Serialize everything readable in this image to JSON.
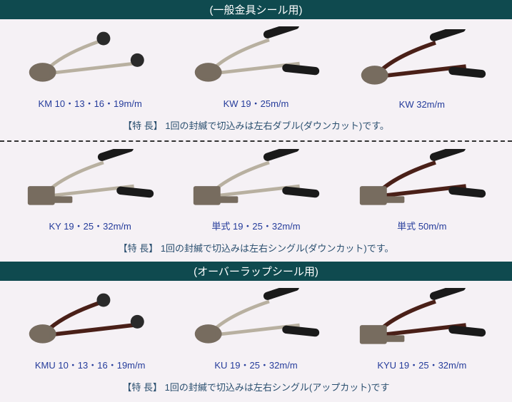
{
  "sections": [
    {
      "header": "(一般金具シール用)",
      "items": [
        {
          "label": "KM 10・13・16・19m/m",
          "style": "km"
        },
        {
          "label": "KW 19・25m/m",
          "style": "kw"
        },
        {
          "label": "KW 32m/m",
          "style": "kw-dark"
        }
      ],
      "feature_label": "【特 長】",
      "feature_text": " 1回の封緘で切込みは左右ダブル(ダウンカット)です。",
      "separator_after": true
    },
    {
      "header": null,
      "items": [
        {
          "label": "KY 19・25・32m/m",
          "style": "ky"
        },
        {
          "label": "単式 19・25・32m/m",
          "style": "tan"
        },
        {
          "label": "単式 50m/m",
          "style": "tan-dark"
        }
      ],
      "feature_label": "【特 長】",
      "feature_text": " 1回の封緘で切込みは左右シングル(ダウンカット)です。",
      "separator_after": false
    },
    {
      "header": "(オーバーラップシール用)",
      "items": [
        {
          "label": "KMU 10・13・16・19m/m",
          "style": "kmu"
        },
        {
          "label": "KU 19・25・32m/m",
          "style": "ku"
        },
        {
          "label": "KYU 19・25・32m/m",
          "style": "kyu"
        }
      ],
      "feature_label": "【特 長】",
      "feature_text": " 1回の封緘で切込みは左右シングル(アップカット)です",
      "separator_after": false
    }
  ],
  "colors": {
    "header_bg": "#0f4a4f",
    "header_text": "#ffffff",
    "body_bg": "#f5f1f5",
    "caption": "#253c9b",
    "feature": "#2a4f6f",
    "grip": "#1a1a1a",
    "bar_light": "#b8b0a0",
    "bar_dark": "#4a2018",
    "metal": "#776c5f"
  }
}
